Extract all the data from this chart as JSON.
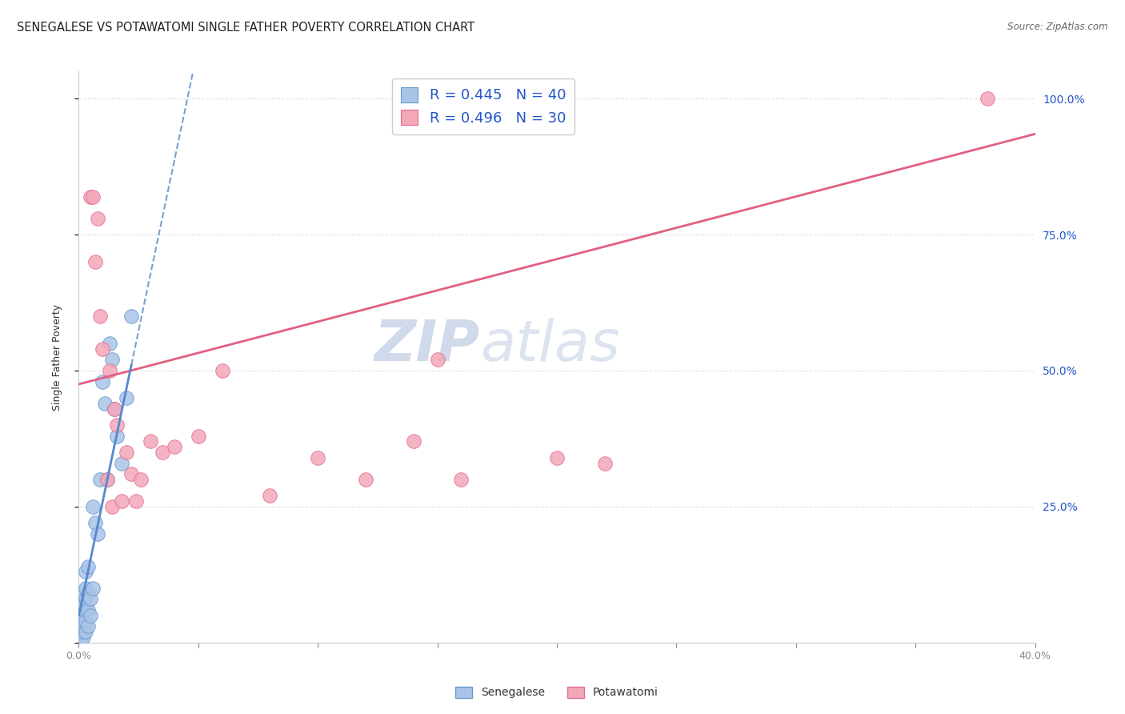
{
  "title": "SENEGALESE VS POTAWATOMI SINGLE FATHER POVERTY CORRELATION CHART",
  "source": "Source: ZipAtlas.com",
  "ylabel": "Single Father Poverty",
  "xlim": [
    0.0,
    0.4
  ],
  "ylim": [
    0.0,
    1.05
  ],
  "yticks": [
    0.0,
    0.25,
    0.5,
    0.75,
    1.0
  ],
  "ytick_labels": [
    "",
    "25.0%",
    "50.0%",
    "75.0%",
    "100.0%"
  ],
  "xticks": [
    0.0,
    0.05,
    0.1,
    0.15,
    0.2,
    0.25,
    0.3,
    0.35,
    0.4
  ],
  "xtick_labels": [
    "0.0%",
    "",
    "",
    "",
    "",
    "",
    "",
    "",
    "40.0%"
  ],
  "senegalese_x": [
    0.001,
    0.001,
    0.001,
    0.001,
    0.001,
    0.001,
    0.002,
    0.002,
    0.002,
    0.002,
    0.002,
    0.002,
    0.002,
    0.003,
    0.003,
    0.003,
    0.003,
    0.003,
    0.003,
    0.004,
    0.004,
    0.004,
    0.004,
    0.005,
    0.005,
    0.006,
    0.006,
    0.007,
    0.008,
    0.009,
    0.01,
    0.011,
    0.012,
    0.013,
    0.014,
    0.015,
    0.016,
    0.018,
    0.02,
    0.022
  ],
  "senegalese_y": [
    0.01,
    0.02,
    0.03,
    0.04,
    0.05,
    0.06,
    0.01,
    0.02,
    0.03,
    0.04,
    0.05,
    0.07,
    0.09,
    0.02,
    0.04,
    0.06,
    0.08,
    0.1,
    0.13,
    0.03,
    0.06,
    0.09,
    0.14,
    0.05,
    0.08,
    0.1,
    0.25,
    0.22,
    0.2,
    0.3,
    0.48,
    0.44,
    0.3,
    0.55,
    0.52,
    0.43,
    0.38,
    0.33,
    0.45,
    0.6
  ],
  "potawatomi_x": [
    0.005,
    0.006,
    0.007,
    0.008,
    0.009,
    0.01,
    0.012,
    0.013,
    0.014,
    0.015,
    0.016,
    0.018,
    0.02,
    0.022,
    0.024,
    0.026,
    0.03,
    0.035,
    0.04,
    0.05,
    0.06,
    0.08,
    0.1,
    0.12,
    0.14,
    0.15,
    0.16,
    0.2,
    0.22,
    0.38
  ],
  "potawatomi_y": [
    0.82,
    0.82,
    0.7,
    0.78,
    0.6,
    0.54,
    0.3,
    0.5,
    0.25,
    0.43,
    0.4,
    0.26,
    0.35,
    0.31,
    0.26,
    0.3,
    0.37,
    0.35,
    0.36,
    0.38,
    0.5,
    0.27,
    0.34,
    0.3,
    0.37,
    0.52,
    0.3,
    0.34,
    0.33,
    1.0
  ],
  "senegalese_color": "#aac4e8",
  "potawatomi_color": "#f4a7b9",
  "senegalese_edge_color": "#6699cc",
  "potawatomi_edge_color": "#e07090",
  "senegalese_line_color": "#5588cc",
  "potawatomi_line_color": "#e06080",
  "legend_text_color": "#2255cc",
  "background_color": "#ffffff",
  "grid_color": "#e0e0ee",
  "watermark_zip": "ZIP",
  "watermark_atlas": "atlas",
  "watermark_color": "#c8d4e8",
  "title_fontsize": 10.5,
  "axis_label_fontsize": 9,
  "tick_label_fontsize": 9,
  "right_tick_color": "#2255cc",
  "legend_fontsize": 13,
  "senegalese_R": 0.445,
  "senegalese_N": 40,
  "potawatomi_R": 0.496,
  "potawatomi_N": 30,
  "pot_trend_x0": 0.0,
  "pot_trend_y0": 0.475,
  "pot_trend_x1": 0.4,
  "pot_trend_y1": 0.935,
  "sen_trend_x0": 0.0,
  "sen_trend_y0": 0.05,
  "sen_trend_x1": 0.022,
  "sen_trend_y1": 0.51
}
